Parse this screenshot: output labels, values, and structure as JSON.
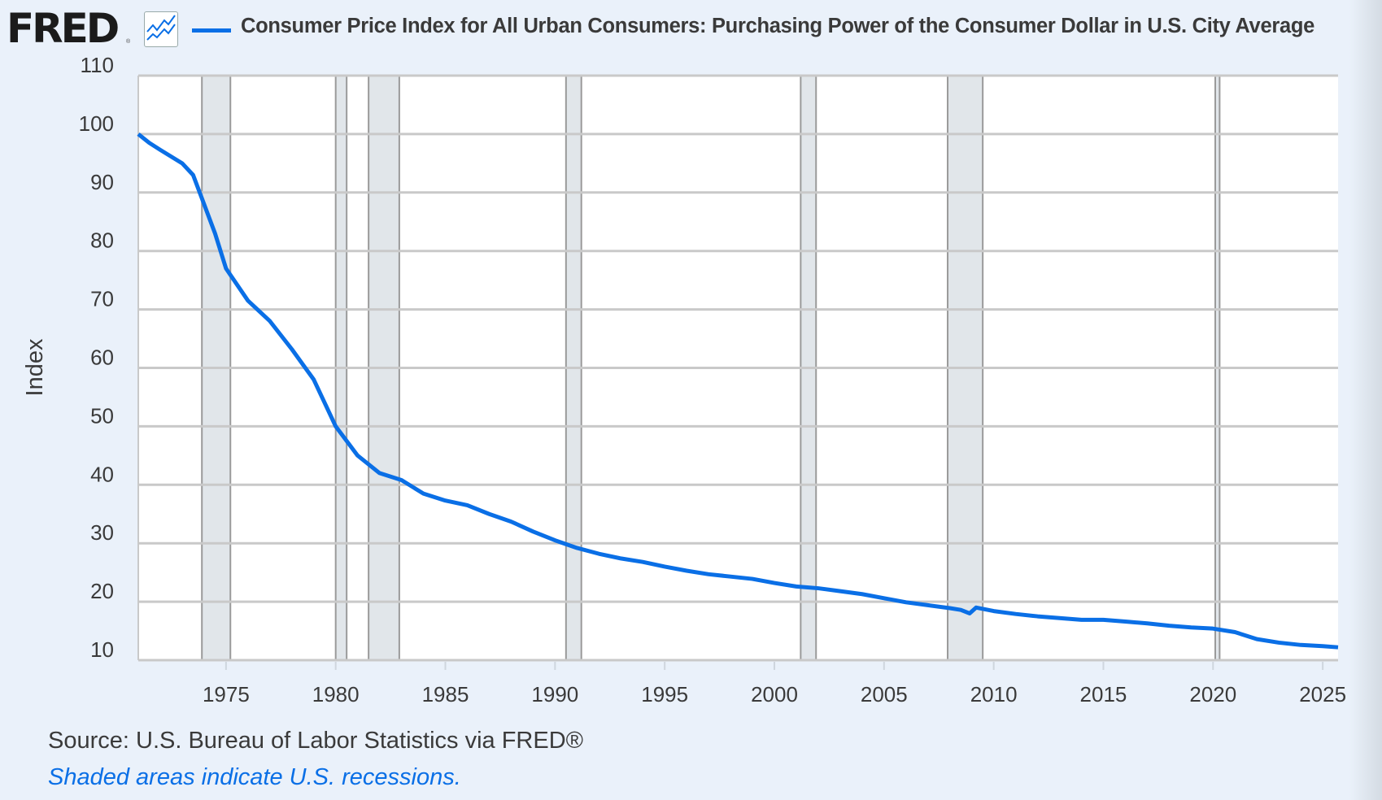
{
  "header": {
    "logo_text": "FRED",
    "logo_reg": "®",
    "series_title": "Consumer Price Index for All Urban Consumers: Purchasing Power of the Consumer Dollar in U.S. City Average",
    "series_color": "#0a6fe6"
  },
  "footer": {
    "source": "Source: U.S. Bureau of Labor Statistics via FRED®",
    "note": "Shaded areas indicate U.S. recessions."
  },
  "chart_data": {
    "type": "line",
    "title": "Consumer Price Index for All Urban Consumers: Purchasing Power of the Consumer Dollar in U.S. City Average",
    "ylabel": "Index",
    "xlabel": "",
    "ylim": [
      10,
      110
    ],
    "xlim": [
      1971.0,
      2025.7
    ],
    "yticks": [
      "10",
      "20",
      "30",
      "40",
      "50",
      "60",
      "70",
      "80",
      "90",
      "100",
      "110"
    ],
    "xticks": [
      "1975",
      "1980",
      "1985",
      "1990",
      "1995",
      "2000",
      "2005",
      "2010",
      "2015",
      "2020",
      "2025"
    ],
    "grid": true,
    "recessions": [
      [
        1973.9,
        1975.2
      ],
      [
        1980.0,
        1980.5
      ],
      [
        1981.5,
        1982.9
      ],
      [
        1990.5,
        1991.2
      ],
      [
        2001.2,
        2001.9
      ],
      [
        2007.9,
        2009.5
      ],
      [
        2020.1,
        2020.3
      ]
    ],
    "series": [
      {
        "name": "Purchasing Power of the Consumer Dollar",
        "color": "#0a6fe6",
        "x": [
          1971.0,
          1971.5,
          1972,
          1973,
          1973.5,
          1974,
          1974.5,
          1975,
          1976,
          1977,
          1978,
          1979,
          1980,
          1981,
          1982,
          1983,
          1984,
          1985,
          1986,
          1987,
          1988,
          1989,
          1990,
          1991,
          1992,
          1993,
          1994,
          1995,
          1996,
          1997,
          1998,
          1999,
          2000,
          2001,
          2002,
          2003,
          2004,
          2005,
          2006,
          2007,
          2008,
          2008.5,
          2008.9,
          2009.2,
          2010,
          2011,
          2012,
          2013,
          2014,
          2015,
          2016,
          2017,
          2018,
          2019,
          2020,
          2021,
          2022,
          2023,
          2024,
          2025,
          2025.7
        ],
        "values": [
          100,
          98.5,
          97.3,
          95,
          93,
          88,
          83,
          77,
          71.5,
          68,
          63.2,
          58,
          50,
          45,
          42,
          40.8,
          38.5,
          37.3,
          36.5,
          35,
          33.7,
          32,
          30.5,
          29.2,
          28.2,
          27.4,
          26.8,
          26,
          25.3,
          24.7,
          24.3,
          23.9,
          23.2,
          22.6,
          22.3,
          21.8,
          21.3,
          20.6,
          19.9,
          19.4,
          18.9,
          18.6,
          18,
          19,
          18.4,
          17.9,
          17.5,
          17.2,
          16.9,
          16.9,
          16.6,
          16.3,
          15.9,
          15.6,
          15.4,
          14.8,
          13.6,
          13.0,
          12.6,
          12.4,
          12.2
        ]
      }
    ]
  }
}
